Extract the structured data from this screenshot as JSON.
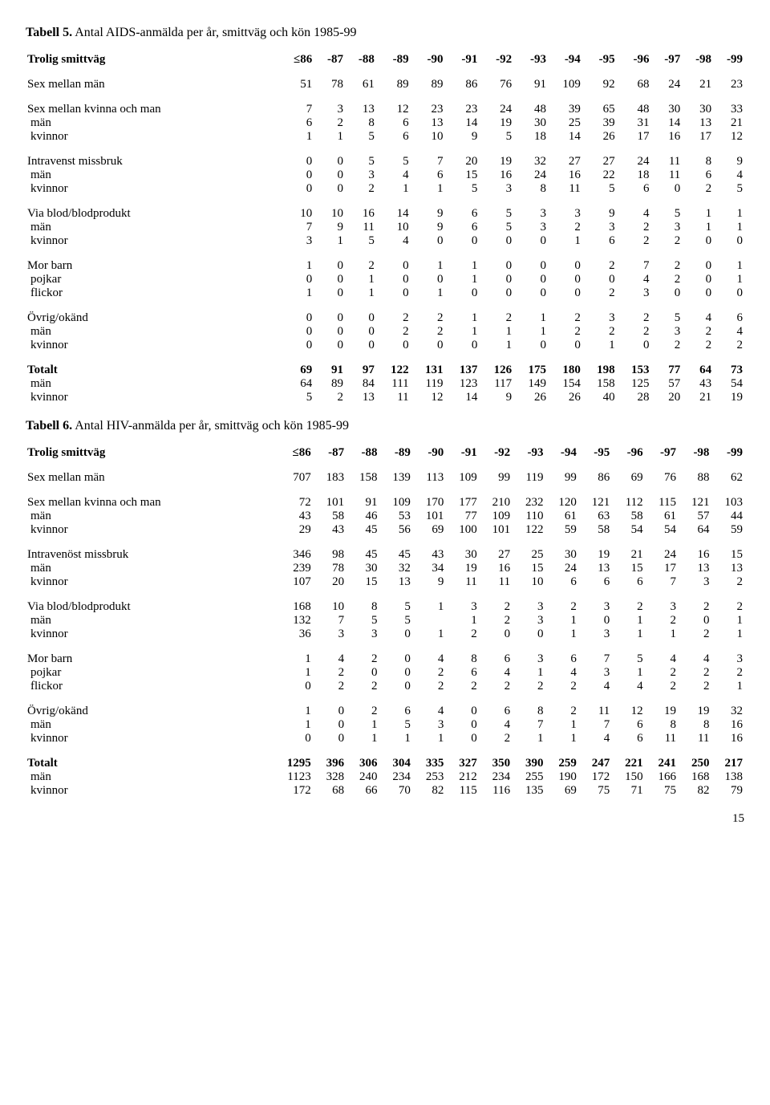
{
  "pageNumber": "15",
  "tables": [
    {
      "titleBold": "Tabell 5.",
      "titleRest": " Antal AIDS-anmälda per år, smittväg och kön 1985-99",
      "header": {
        "label": "Trolig smittväg",
        "cols": [
          "86",
          "-87",
          "-88",
          "-89",
          "-90",
          "-91",
          "-92",
          "-93",
          "-94",
          "-95",
          "-96",
          "-97",
          "-98",
          "-99"
        ],
        "firstPrefixLTE": true
      },
      "groups": [
        [
          {
            "label": "Sex mellan män",
            "vals": [
              "51",
              "78",
              "61",
              "89",
              "89",
              "86",
              "76",
              "91",
              "109",
              "92",
              "68",
              "24",
              "21",
              "23"
            ]
          }
        ],
        [
          {
            "label": "Sex mellan kvinna och man",
            "vals": [
              "7",
              "3",
              "13",
              "12",
              "23",
              "23",
              "24",
              "48",
              "39",
              "65",
              "48",
              "30",
              "30",
              "33"
            ]
          },
          {
            "label": " män",
            "vals": [
              "6",
              "2",
              "8",
              "6",
              "13",
              "14",
              "19",
              "30",
              "25",
              "39",
              "31",
              "14",
              "13",
              "21"
            ],
            "indent": true
          },
          {
            "label": " kvinnor",
            "vals": [
              "1",
              "1",
              "5",
              "6",
              "10",
              "9",
              "5",
              "18",
              "14",
              "26",
              "17",
              "16",
              "17",
              "12"
            ],
            "indent": true
          }
        ],
        [
          {
            "label": "Intravenst  missbruk",
            "vals": [
              "0",
              "0",
              "5",
              "5",
              "7",
              "20",
              "19",
              "32",
              "27",
              "27",
              "24",
              "11",
              "8",
              "9"
            ]
          },
          {
            "label": " män",
            "vals": [
              "0",
              "0",
              "3",
              "4",
              "6",
              "15",
              "16",
              "24",
              "16",
              "22",
              "18",
              "11",
              "6",
              "4"
            ],
            "indent": true
          },
          {
            "label": " kvinnor",
            "vals": [
              "0",
              "0",
              "2",
              "1",
              "1",
              "5",
              "3",
              "8",
              "11",
              "5",
              "6",
              "0",
              "2",
              "5"
            ],
            "indent": true
          }
        ],
        [
          {
            "label": "Via blod/blodprodukt",
            "vals": [
              "10",
              "10",
              "16",
              "14",
              "9",
              "6",
              "5",
              "3",
              "3",
              "9",
              "4",
              "5",
              "1",
              "1"
            ]
          },
          {
            "label": " män",
            "vals": [
              "7",
              "9",
              "11",
              "10",
              "9",
              "6",
              "5",
              "3",
              "2",
              "3",
              "2",
              "3",
              "1",
              "1"
            ],
            "indent": true
          },
          {
            "label": " kvinnor",
            "vals": [
              "3",
              "1",
              "5",
              "4",
              "0",
              "0",
              "0",
              "0",
              "1",
              "6",
              "2",
              "2",
              "0",
              "0"
            ],
            "indent": true
          }
        ],
        [
          {
            "label": "Mor barn",
            "vals": [
              "1",
              "0",
              "2",
              "0",
              "1",
              "1",
              "0",
              "0",
              "0",
              "2",
              "7",
              "2",
              "0",
              "1"
            ]
          },
          {
            "label": " pojkar",
            "vals": [
              "0",
              "0",
              "1",
              "0",
              "0",
              "1",
              "0",
              "0",
              "0",
              "0",
              "4",
              "2",
              "0",
              "1"
            ],
            "indent": true
          },
          {
            "label": " flickor",
            "vals": [
              "1",
              "0",
              "1",
              "0",
              "1",
              "0",
              "0",
              "0",
              "0",
              "2",
              "3",
              "0",
              "0",
              "0"
            ],
            "indent": true
          }
        ],
        [
          {
            "label": "Övrig/okänd",
            "vals": [
              "0",
              "0",
              "0",
              "2",
              "2",
              "1",
              "2",
              "1",
              "2",
              "3",
              "2",
              "5",
              "4",
              "6"
            ]
          },
          {
            "label": " män",
            "vals": [
              "0",
              "0",
              "0",
              "2",
              "2",
              "1",
              "1",
              "1",
              "2",
              "2",
              "2",
              "3",
              "2",
              "4"
            ],
            "indent": true
          },
          {
            "label": " kvinnor",
            "vals": [
              "0",
              "0",
              "0",
              "0",
              "0",
              "0",
              "1",
              "0",
              "0",
              "1",
              "0",
              "2",
              "2",
              "2"
            ],
            "indent": true
          }
        ],
        [
          {
            "label": "Totalt",
            "vals": [
              "69",
              "91",
              "97",
              "122",
              "131",
              "137",
              "126",
              "175",
              "180",
              "198",
              "153",
              "77",
              "64",
              "73"
            ],
            "bold": true
          },
          {
            "label": " män",
            "vals": [
              "64",
              "89",
              "84",
              "111",
              "119",
              "123",
              "117",
              "149",
              "154",
              "158",
              "125",
              "57",
              "43",
              "54"
            ],
            "indent": true
          },
          {
            "label": " kvinnor",
            "vals": [
              "5",
              "2",
              "13",
              "11",
              "12",
              "14",
              "9",
              "26",
              "26",
              "40",
              "28",
              "20",
              "21",
              "19"
            ],
            "indent": true
          }
        ]
      ]
    },
    {
      "titleBold": "Tabell 6.",
      "titleRest": " Antal HIV-anmälda per år, smittväg och kön 1985-99",
      "header": {
        "label": "Trolig smittväg",
        "cols": [
          "86",
          "-87",
          "-88",
          "-89",
          "-90",
          "-91",
          "-92",
          "-93",
          "-94",
          "-95",
          "-96",
          "-97",
          "-98",
          "-99"
        ],
        "firstPrefixLTE": true
      },
      "groups": [
        [
          {
            "label": "Sex mellan män",
            "vals": [
              "707",
              "183",
              "158",
              "139",
              "113",
              "109",
              "99",
              "119",
              "99",
              "86",
              "69",
              "76",
              "88",
              "62"
            ]
          }
        ],
        [
          {
            "label": "Sex mellan kvinna och man",
            "vals": [
              "72",
              "101",
              "91",
              "109",
              "170",
              "177",
              "210",
              "232",
              "120",
              "121",
              "112",
              "115",
              "121",
              "103"
            ]
          },
          {
            "label": " män",
            "vals": [
              "43",
              "58",
              "46",
              "53",
              "101",
              "77",
              "109",
              "110",
              "61",
              "63",
              "58",
              "61",
              "57",
              "44"
            ],
            "indent": true
          },
          {
            "label": " kvinnor",
            "vals": [
              "29",
              "43",
              "45",
              "56",
              "69",
              "100",
              "101",
              "122",
              "59",
              "58",
              "54",
              "54",
              "64",
              "59"
            ],
            "indent": true
          }
        ],
        [
          {
            "label": "Intravenöst missbruk",
            "vals": [
              "346",
              "98",
              "45",
              "45",
              "43",
              "30",
              "27",
              "25",
              "30",
              "19",
              "21",
              "24",
              "16",
              "15"
            ]
          },
          {
            "label": " män",
            "vals": [
              "239",
              "78",
              "30",
              "32",
              "34",
              "19",
              "16",
              "15",
              "24",
              "13",
              "15",
              "17",
              "13",
              "13"
            ],
            "indent": true
          },
          {
            "label": " kvinnor",
            "vals": [
              "107",
              "20",
              "15",
              "13",
              "9",
              "11",
              "11",
              "10",
              "6",
              "6",
              "6",
              "7",
              "3",
              "2"
            ],
            "indent": true
          }
        ],
        [
          {
            "label": "Via blod/blodprodukt",
            "vals": [
              "168",
              "10",
              "8",
              "5",
              "1",
              "3",
              "2",
              "3",
              "2",
              "3",
              "2",
              "3",
              "2",
              "2"
            ]
          },
          {
            "label": " män",
            "vals": [
              "132",
              "7",
              "5",
              "5",
              "",
              "1",
              "2",
              "3",
              "1",
              "0",
              "1",
              "2",
              "0",
              "1"
            ],
            "indent": true
          },
          {
            "label": " kvinnor",
            "vals": [
              "36",
              "3",
              "3",
              "0",
              "1",
              "2",
              "0",
              "0",
              "1",
              "3",
              "1",
              "1",
              "2",
              "1"
            ],
            "indent": true
          }
        ],
        [
          {
            "label": "Mor barn",
            "vals": [
              "1",
              "4",
              "2",
              "0",
              "4",
              "8",
              "6",
              "3",
              "6",
              "7",
              "5",
              "4",
              "4",
              "3"
            ]
          },
          {
            "label": " pojkar",
            "vals": [
              "1",
              "2",
              "0",
              "0",
              "2",
              "6",
              "4",
              "1",
              "4",
              "3",
              "1",
              "2",
              "2",
              "2"
            ],
            "indent": true
          },
          {
            "label": " flickor",
            "vals": [
              "0",
              "2",
              "2",
              "0",
              "2",
              "2",
              "2",
              "2",
              "2",
              "4",
              "4",
              "2",
              "2",
              "1"
            ],
            "indent": true
          }
        ],
        [
          {
            "label": "Övrig/okänd",
            "vals": [
              "1",
              "0",
              "2",
              "6",
              "4",
              "0",
              "6",
              "8",
              "2",
              "11",
              "12",
              "19",
              "19",
              "32"
            ]
          },
          {
            "label": " män",
            "vals": [
              "1",
              "0",
              "1",
              "5",
              "3",
              "0",
              "4",
              "7",
              "1",
              "7",
              "6",
              "8",
              "8",
              "16"
            ],
            "indent": true
          },
          {
            "label": " kvinnor",
            "vals": [
              "0",
              "0",
              "1",
              "1",
              "1",
              "0",
              "2",
              "1",
              "1",
              "4",
              "6",
              "11",
              "11",
              "16"
            ],
            "indent": true
          }
        ],
        [
          {
            "label": "Totalt",
            "vals": [
              "1295",
              "396",
              "306",
              "304",
              "335",
              "327",
              "350",
              "390",
              "259",
              "247",
              "221",
              "241",
              "250",
              "217"
            ],
            "bold": true
          },
          {
            "label": " män",
            "vals": [
              "1123",
              "328",
              "240",
              "234",
              "253",
              "212",
              "234",
              "255",
              "190",
              "172",
              "150",
              "166",
              "168",
              "138"
            ],
            "indent": true
          },
          {
            "label": " kvinnor",
            "vals": [
              "172",
              "68",
              "66",
              "70",
              "82",
              "115",
              "116",
              "135",
              "69",
              "75",
              "71",
              "75",
              "82",
              "79"
            ],
            "indent": true
          }
        ]
      ]
    }
  ]
}
